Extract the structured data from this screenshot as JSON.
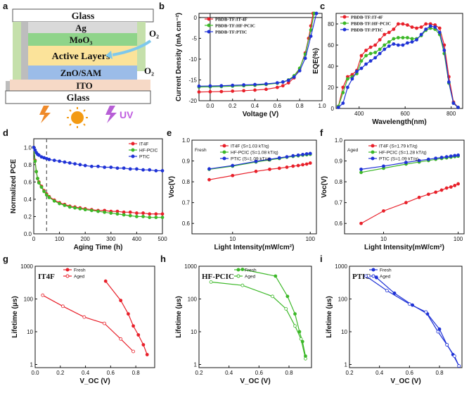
{
  "colors": {
    "red": "#e8202a",
    "green": "#3cb828",
    "blue": "#1f32d6",
    "black": "#111111"
  },
  "panel_labels": [
    "a",
    "b",
    "c",
    "d",
    "e",
    "f",
    "g",
    "h",
    "i"
  ],
  "device": {
    "layers": [
      "Glass",
      "Ag",
      "MoO₃",
      "Active Layers",
      "ZnO/SAM",
      "ITO",
      "Glass"
    ],
    "o2_labels": [
      "O₂",
      "O₂"
    ],
    "uv_label": "UV"
  },
  "chart_data": [
    {
      "id": "b",
      "type": "line",
      "xlabel": "Voltage (V)",
      "ylabel": "Current Density (mA cm⁻²)",
      "xlim": [
        -0.1,
        1.0
      ],
      "ylim": [
        -20,
        1
      ],
      "xticks": [
        "0.0",
        "0.2",
        "0.4",
        "0.6",
        "0.8",
        "1.0"
      ],
      "yticks": [
        "0",
        "-5",
        "-10",
        "-15",
        "-20"
      ],
      "legend": [
        "PBDB-TF:IT-4F",
        "PBDB-TF:HF-PCIC",
        "PBDB-TF:PTIC"
      ],
      "series": [
        {
          "name": "PBDB-TF:IT-4F",
          "x": [
            -0.1,
            0,
            0.1,
            0.2,
            0.3,
            0.4,
            0.5,
            0.6,
            0.65,
            0.7,
            0.75,
            0.8,
            0.85,
            0.88,
            0.9,
            0.92
          ],
          "y": [
            -17.9,
            -17.85,
            -17.8,
            -17.7,
            -17.6,
            -17.45,
            -17.25,
            -16.8,
            -16.4,
            -15.7,
            -14.5,
            -12.3,
            -8.5,
            -5.0,
            -2.0,
            1.0
          ]
        },
        {
          "name": "PBDB-TF:HF-PCIC",
          "x": [
            -0.1,
            0,
            0.1,
            0.2,
            0.3,
            0.4,
            0.5,
            0.6,
            0.65,
            0.7,
            0.75,
            0.8,
            0.85,
            0.9,
            0.93
          ],
          "y": [
            -16.7,
            -16.65,
            -16.6,
            -16.5,
            -16.4,
            -16.3,
            -16.1,
            -15.8,
            -15.5,
            -15.0,
            -14.0,
            -12.2,
            -8.8,
            -3.0,
            1.0
          ]
        },
        {
          "name": "PBDB-TF:PTIC",
          "x": [
            -0.1,
            0,
            0.1,
            0.2,
            0.3,
            0.4,
            0.5,
            0.6,
            0.65,
            0.7,
            0.75,
            0.8,
            0.85,
            0.9,
            0.95
          ],
          "y": [
            -16.5,
            -16.45,
            -16.4,
            -16.3,
            -16.2,
            -16.1,
            -15.95,
            -15.7,
            -15.5,
            -15.1,
            -14.3,
            -12.8,
            -9.8,
            -4.5,
            1.0
          ]
        }
      ]
    },
    {
      "id": "c",
      "type": "line",
      "xlabel": "Wavelength(nm)",
      "ylabel": "EQE(%)",
      "xlim": [
        300,
        850
      ],
      "ylim": [
        0,
        90
      ],
      "xticks": [
        "400",
        "600",
        "800"
      ],
      "yticks": [
        "0",
        "20",
        "40",
        "60",
        "80"
      ],
      "legend": [
        "PBDB-TF:IT-4F",
        "PBDB-TF:HF-PCIC",
        "PBDB-TF:PTIC"
      ],
      "series": [
        {
          "name": "PBDB-TF:IT-4F",
          "x": [
            310,
            330,
            350,
            370,
            390,
            410,
            430,
            450,
            470,
            490,
            510,
            530,
            550,
            570,
            590,
            610,
            630,
            650,
            670,
            690,
            710,
            730,
            750,
            770,
            790,
            810,
            830
          ],
          "y": [
            2,
            20,
            30,
            32,
            36,
            50,
            55,
            58,
            60,
            65,
            70,
            72,
            75,
            80,
            80,
            79,
            77,
            76,
            77,
            80,
            80,
            79,
            76,
            60,
            30,
            6,
            1
          ]
        },
        {
          "name": "PBDB-TF:HF-PCIC",
          "x": [
            310,
            330,
            350,
            370,
            390,
            410,
            430,
            450,
            470,
            490,
            510,
            530,
            550,
            570,
            590,
            610,
            630,
            650,
            670,
            690,
            710,
            730,
            750,
            770,
            790,
            810,
            830
          ],
          "y": [
            2,
            15,
            28,
            30,
            33,
            45,
            50,
            52,
            53,
            56,
            60,
            63,
            66,
            67,
            67,
            67,
            66,
            66,
            69,
            74,
            76,
            75,
            70,
            52,
            24,
            5,
            1
          ]
        },
        {
          "name": "PBDB-TF:PTIC",
          "x": [
            310,
            330,
            350,
            370,
            390,
            410,
            430,
            450,
            470,
            490,
            510,
            530,
            550,
            570,
            590,
            610,
            630,
            650,
            670,
            690,
            710,
            730,
            750,
            770,
            790,
            810,
            830
          ],
          "y": [
            1,
            5,
            20,
            28,
            35,
            38,
            42,
            45,
            48,
            52,
            56,
            59,
            61,
            60,
            60,
            62,
            63,
            65,
            70,
            75,
            78,
            77,
            72,
            55,
            25,
            5,
            1
          ]
        }
      ]
    },
    {
      "id": "d",
      "type": "scatter",
      "xlabel": "Aging Time (h)",
      "ylabel": "Normalized PCE",
      "xlim": [
        0,
        500
      ],
      "ylim": [
        0,
        1.1
      ],
      "xticks": [
        "0",
        "100",
        "200",
        "300",
        "400",
        "500"
      ],
      "yticks": [
        "0.0",
        "0.2",
        "0.4",
        "0.6",
        "0.8",
        "1.0"
      ],
      "legend": [
        "IT4F",
        "HF-PCIC",
        "PTIC"
      ],
      "dashed_line_x": 50,
      "series": [
        {
          "name": "IT4F",
          "x": [
            0,
            5,
            10,
            15,
            20,
            30,
            40,
            50,
            60,
            80,
            100,
            120,
            140,
            160,
            180,
            200,
            225,
            250,
            275,
            300,
            325,
            350,
            375,
            400,
            425,
            450,
            475,
            500
          ],
          "y": [
            1.0,
            0.85,
            0.72,
            0.64,
            0.6,
            0.55,
            0.5,
            0.46,
            0.43,
            0.39,
            0.36,
            0.34,
            0.32,
            0.31,
            0.3,
            0.29,
            0.28,
            0.27,
            0.27,
            0.26,
            0.26,
            0.25,
            0.25,
            0.24,
            0.24,
            0.23,
            0.23,
            0.23
          ]
        },
        {
          "name": "HF-PCIC",
          "x": [
            0,
            5,
            10,
            15,
            20,
            30,
            40,
            50,
            60,
            80,
            100,
            120,
            140,
            160,
            180,
            200,
            225,
            250,
            275,
            300,
            325,
            350,
            375,
            400,
            425,
            450,
            475,
            500
          ],
          "y": [
            1.0,
            0.84,
            0.72,
            0.64,
            0.59,
            0.54,
            0.49,
            0.45,
            0.42,
            0.38,
            0.35,
            0.33,
            0.31,
            0.3,
            0.29,
            0.28,
            0.27,
            0.26,
            0.25,
            0.24,
            0.23,
            0.22,
            0.21,
            0.2,
            0.2,
            0.19,
            0.19,
            0.19
          ]
        },
        {
          "name": "PTIC",
          "x": [
            0,
            5,
            10,
            15,
            20,
            30,
            40,
            50,
            60,
            80,
            100,
            120,
            140,
            160,
            180,
            200,
            225,
            250,
            275,
            300,
            325,
            350,
            375,
            400,
            425,
            450,
            475,
            500
          ],
          "y": [
            1.0,
            0.97,
            0.94,
            0.92,
            0.91,
            0.89,
            0.88,
            0.87,
            0.86,
            0.85,
            0.84,
            0.83,
            0.82,
            0.81,
            0.8,
            0.79,
            0.78,
            0.78,
            0.77,
            0.77,
            0.76,
            0.76,
            0.75,
            0.75,
            0.74,
            0.74,
            0.73,
            0.73
          ]
        }
      ]
    },
    {
      "id": "e",
      "type": "scatter",
      "title": "Fresh",
      "xlabel": "Light Intensity(mW/cm²)",
      "ylabel": "Voc(V)",
      "xscale": "log",
      "xlim": [
        3,
        120
      ],
      "ylim": [
        0.55,
        1.0
      ],
      "xticks": [
        "10",
        "100"
      ],
      "yticks": [
        "0.6",
        "0.7",
        "0.8",
        "0.9",
        "1.0"
      ],
      "legend": [
        "IT4F (S=1.03 kT/q)",
        "HF-PCIC (S=1.08 kT/q)",
        "PTIC (S=1.09 kT/q)"
      ],
      "series": [
        {
          "name": "IT4F (S=1.03 kT/q)",
          "x": [
            5,
            10,
            20,
            30,
            40,
            50,
            60,
            70,
            80,
            90,
            100
          ],
          "y": [
            0.81,
            0.83,
            0.85,
            0.86,
            0.865,
            0.87,
            0.875,
            0.878,
            0.882,
            0.885,
            0.89
          ]
        },
        {
          "name": "HF-PCIC (S=1.08 kT/q)",
          "x": [
            5,
            10,
            20,
            30,
            40,
            50,
            60,
            70,
            80,
            90,
            100
          ],
          "y": [
            0.86,
            0.875,
            0.895,
            0.905,
            0.912,
            0.918,
            0.922,
            0.925,
            0.928,
            0.93,
            0.932
          ]
        },
        {
          "name": "PTIC (S=1.09 kT/q)",
          "x": [
            5,
            10,
            20,
            30,
            40,
            50,
            60,
            70,
            80,
            90,
            100
          ],
          "y": [
            0.862,
            0.878,
            0.898,
            0.908,
            0.915,
            0.92,
            0.925,
            0.928,
            0.931,
            0.934,
            0.936
          ]
        }
      ]
    },
    {
      "id": "f",
      "type": "scatter",
      "title": "Aged",
      "xlabel": "Light Intensity(mW/cm²)",
      "ylabel": "Voc(V)",
      "xscale": "log",
      "xlim": [
        3,
        120
      ],
      "ylim": [
        0.55,
        1.0
      ],
      "xticks": [
        "10",
        "100"
      ],
      "yticks": [
        "0.6",
        "0.7",
        "0.8",
        "0.9",
        "1.0"
      ],
      "legend": [
        "IT4F (S=1.79 kT/q)",
        "HF-PCIC (S=1.28 kT/q)",
        "PTIC (S=1.09 kT/q)"
      ],
      "series": [
        {
          "name": "IT4F (S=1.79 kT/q)",
          "x": [
            5,
            10,
            20,
            30,
            40,
            50,
            60,
            70,
            80,
            90,
            100
          ],
          "y": [
            0.6,
            0.66,
            0.7,
            0.725,
            0.74,
            0.75,
            0.76,
            0.77,
            0.775,
            0.782,
            0.79
          ]
        },
        {
          "name": "HF-PCIC (S=1.28 kT/q)",
          "x": [
            5,
            10,
            20,
            30,
            40,
            50,
            60,
            70,
            80,
            90,
            100
          ],
          "y": [
            0.845,
            0.865,
            0.885,
            0.895,
            0.902,
            0.908,
            0.912,
            0.915,
            0.918,
            0.921,
            0.923
          ]
        },
        {
          "name": "PTIC (S=1.09 kT/q)",
          "x": [
            5,
            10,
            20,
            30,
            40,
            50,
            60,
            70,
            80,
            90,
            100
          ],
          "y": [
            0.86,
            0.875,
            0.893,
            0.902,
            0.908,
            0.913,
            0.917,
            0.92,
            0.923,
            0.926,
            0.928
          ]
        }
      ]
    },
    {
      "id": "g",
      "type": "line",
      "title": "IT4F",
      "xlabel": "V_OC (V)",
      "ylabel": "Lifetime (μs)",
      "yscale": "log",
      "xlim": [
        0,
        0.95
      ],
      "ylim": [
        0.8,
        1000
      ],
      "xticks": [
        "0.0",
        "0.2",
        "0.4",
        "0.6",
        "0.8"
      ],
      "yticks": [
        "1",
        "10",
        "100",
        "1000"
      ],
      "legend": [
        "Fresh",
        "Aged"
      ],
      "series": [
        {
          "name": "Fresh",
          "x": [
            0.56,
            0.68,
            0.74,
            0.78,
            0.82,
            0.86,
            0.89
          ],
          "y": [
            350,
            90,
            35,
            15,
            8,
            4,
            2
          ]
        },
        {
          "name": "Aged",
          "x": [
            0.06,
            0.22,
            0.39,
            0.55,
            0.68,
            0.78
          ],
          "y": [
            130,
            60,
            28,
            18,
            6,
            2.5
          ]
        }
      ]
    },
    {
      "id": "h",
      "type": "line",
      "title": "HF-PCIC",
      "xlabel": "V_OC (V)",
      "ylabel": "Lifetime (μs)",
      "yscale": "log",
      "xlim": [
        0.2,
        0.95
      ],
      "ylim": [
        0.8,
        1000
      ],
      "xticks": [
        "0.2",
        "0.4",
        "0.6",
        "0.8"
      ],
      "yticks": [
        "1",
        "10",
        "100",
        "1000"
      ],
      "legend": [
        "Fresh",
        "Aged"
      ],
      "series": [
        {
          "name": "Fresh",
          "x": [
            0.49,
            0.71,
            0.79,
            0.84,
            0.87,
            0.89,
            0.91
          ],
          "y": [
            800,
            500,
            120,
            35,
            10,
            5,
            1.8
          ]
        },
        {
          "name": "Aged",
          "x": [
            0.28,
            0.49,
            0.69,
            0.78,
            0.84,
            0.88,
            0.91
          ],
          "y": [
            330,
            260,
            120,
            50,
            15,
            6,
            1.5
          ]
        }
      ]
    },
    {
      "id": "i",
      "type": "line",
      "title": "PTIC",
      "xlabel": "V_OC (V)",
      "ylabel": "Lifetime (μs)",
      "yscale": "log",
      "xlim": [
        0.2,
        0.95
      ],
      "ylim": [
        0.8,
        1000
      ],
      "xticks": [
        "0.2",
        "0.4",
        "0.6",
        "0.8"
      ],
      "yticks": [
        "1",
        "10",
        "100",
        "1000"
      ],
      "legend": [
        "Fresh",
        "Aged"
      ],
      "series": [
        {
          "name": "Fresh",
          "x": [
            0.38,
            0.5,
            0.62,
            0.72,
            0.8,
            0.85,
            0.89,
            0.93
          ],
          "y": [
            450,
            150,
            65,
            35,
            12,
            4,
            2,
            0.9
          ]
        },
        {
          "name": "Aged",
          "x": [
            0.31,
            0.45,
            0.6,
            0.71,
            0.79,
            0.85,
            0.9,
            0.93
          ],
          "y": [
            500,
            180,
            70,
            40,
            10,
            4,
            1.8,
            0.9
          ]
        }
      ]
    }
  ]
}
